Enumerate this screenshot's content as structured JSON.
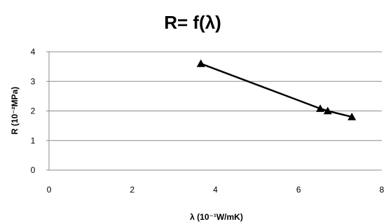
{
  "chart_data": {
    "type": "line",
    "title": "R= f(λ)",
    "xlabel": "λ (10⁻¹W/mK)",
    "ylabel": "R (10⁻²MPa)",
    "xlim": [
      0,
      8
    ],
    "ylim": [
      0,
      4
    ],
    "x_ticks": [
      "0",
      "2",
      "4",
      "6",
      "8"
    ],
    "y_ticks": [
      "0",
      "1",
      "2",
      "3",
      "4"
    ],
    "x_tick_values": [
      0,
      2,
      4,
      6,
      8
    ],
    "y_tick_values": [
      0,
      1,
      2,
      3,
      4
    ],
    "grid": "horizontal",
    "legend": "none",
    "marker": "triangle",
    "series": [
      {
        "x": [
          3.65,
          6.52,
          6.7,
          7.28
        ],
        "values": [
          3.6,
          2.08,
          2.0,
          1.8
        ],
        "color": "#000000"
      }
    ]
  }
}
